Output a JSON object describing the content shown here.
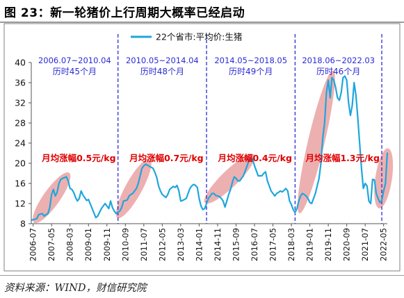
{
  "figure": {
    "title": "图 23：新一轮猪价上行周期大概率已经启动",
    "source": "资料来源：WIND，财信研究院"
  },
  "chart_data": {
    "type": "line",
    "series": [
      {
        "name": "22个省市:平均价:生猪",
        "color": "#1ea6de",
        "points": [
          [
            "2006-06",
            8.7
          ],
          [
            "2006-09",
            9.0
          ],
          [
            "2006-10",
            9.8
          ],
          [
            "2006-12",
            10.0
          ],
          [
            "2007-01",
            9.5
          ],
          [
            "2007-02",
            9.8
          ],
          [
            "2007-03",
            10.0
          ],
          [
            "2007-04",
            11.2
          ],
          [
            "2007-05",
            13.8
          ],
          [
            "2007-06",
            14.8
          ],
          [
            "2007-07",
            13.5
          ],
          [
            "2007-08",
            14.2
          ],
          [
            "2007-09",
            16.0
          ],
          [
            "2007-10",
            16.8
          ],
          [
            "2007-11",
            17.0
          ],
          [
            "2008-01",
            17.3
          ],
          [
            "2008-02",
            16.5
          ],
          [
            "2008-03",
            15.0
          ],
          [
            "2008-04",
            14.8
          ],
          [
            "2008-05",
            14.2
          ],
          [
            "2008-06",
            13.2
          ],
          [
            "2008-07",
            12.5
          ],
          [
            "2008-08",
            13.0
          ],
          [
            "2008-09",
            14.5
          ],
          [
            "2008-10",
            13.7
          ],
          [
            "2008-12",
            12.6
          ],
          [
            "2009-01",
            12.8
          ],
          [
            "2009-03",
            11.0
          ],
          [
            "2009-05",
            9.2
          ],
          [
            "2009-06",
            9.5
          ],
          [
            "2009-08",
            11.0
          ],
          [
            "2009-09",
            11.5
          ],
          [
            "2009-10",
            12.0
          ],
          [
            "2009-12",
            11.0
          ],
          [
            "2010-01",
            12.5
          ],
          [
            "2010-02",
            11.2
          ],
          [
            "2010-03",
            10.5
          ],
          [
            "2010-04",
            10.0
          ],
          [
            "2010-05",
            10.3
          ],
          [
            "2010-06",
            10.5
          ],
          [
            "2010-07",
            11.2
          ],
          [
            "2010-08",
            12.5
          ],
          [
            "2010-09",
            12.6
          ],
          [
            "2010-10",
            12.7
          ],
          [
            "2010-11",
            13.5
          ],
          [
            "2010-12",
            13.8
          ],
          [
            "2011-01",
            14.0
          ],
          [
            "2011-02",
            14.5
          ],
          [
            "2011-03",
            15.0
          ],
          [
            "2011-04",
            16.0
          ],
          [
            "2011-05",
            17.5
          ],
          [
            "2011-06",
            19.0
          ],
          [
            "2011-07",
            19.5
          ],
          [
            "2011-08",
            19.8
          ],
          [
            "2011-09",
            19.6
          ],
          [
            "2011-10",
            19.4
          ],
          [
            "2011-11",
            19.2
          ],
          [
            "2011-12",
            19.0
          ],
          [
            "2012-01",
            18.2
          ],
          [
            "2012-02",
            17.2
          ],
          [
            "2012-03",
            15.5
          ],
          [
            "2012-04",
            14.5
          ],
          [
            "2012-05",
            13.8
          ],
          [
            "2012-06",
            13.5
          ],
          [
            "2012-07",
            13.2
          ],
          [
            "2012-08",
            13.8
          ],
          [
            "2012-09",
            14.8
          ],
          [
            "2012-10",
            15.1
          ],
          [
            "2012-11",
            15.4
          ],
          [
            "2012-12",
            15.2
          ],
          [
            "2013-01",
            15.6
          ],
          [
            "2013-02",
            14.5
          ],
          [
            "2013-03",
            12.5
          ],
          [
            "2013-04",
            12.6
          ],
          [
            "2013-05",
            12.8
          ],
          [
            "2013-06",
            13.0
          ],
          [
            "2013-07",
            14.0
          ],
          [
            "2013-08",
            15.0
          ],
          [
            "2013-09",
            15.5
          ],
          [
            "2013-10",
            15.8
          ],
          [
            "2013-11",
            15.6
          ],
          [
            "2013-12",
            15.2
          ],
          [
            "2014-01",
            13.0
          ],
          [
            "2014-02",
            11.5
          ],
          [
            "2014-03",
            10.8
          ],
          [
            "2014-04",
            11.0
          ],
          [
            "2014-05",
            12.0
          ],
          [
            "2014-06",
            13.0
          ],
          [
            "2014-07",
            13.5
          ],
          [
            "2014-08",
            14.0
          ],
          [
            "2014-09",
            14.0
          ],
          [
            "2014-10",
            13.6
          ],
          [
            "2014-11",
            13.5
          ],
          [
            "2014-12",
            13.4
          ],
          [
            "2015-01",
            13.0
          ],
          [
            "2015-02",
            12.5
          ],
          [
            "2015-03",
            11.3
          ],
          [
            "2015-04",
            12.5
          ],
          [
            "2015-05",
            13.8
          ],
          [
            "2015-06",
            14.8
          ],
          [
            "2015-07",
            16.2
          ],
          [
            "2015-08",
            17.3
          ],
          [
            "2015-09",
            17.0
          ],
          [
            "2015-10",
            16.5
          ],
          [
            "2015-11",
            16.5
          ],
          [
            "2015-12",
            17.0
          ],
          [
            "2016-01",
            17.5
          ],
          [
            "2016-02",
            18.5
          ],
          [
            "2016-03",
            19.5
          ],
          [
            "2016-04",
            20.5
          ],
          [
            "2016-05",
            21.0
          ],
          [
            "2016-06",
            20.8
          ],
          [
            "2016-07",
            19.5
          ],
          [
            "2016-08",
            18.5
          ],
          [
            "2016-09",
            17.5
          ],
          [
            "2016-10",
            17.5
          ],
          [
            "2016-11",
            17.5
          ],
          [
            "2016-12",
            18.0
          ],
          [
            "2017-01",
            18.3
          ],
          [
            "2017-02",
            16.5
          ],
          [
            "2017-03",
            15.5
          ],
          [
            "2017-04",
            14.5
          ],
          [
            "2017-05",
            14.0
          ],
          [
            "2017-06",
            13.5
          ],
          [
            "2017-07",
            14.0
          ],
          [
            "2017-08",
            14.2
          ],
          [
            "2017-09",
            14.5
          ],
          [
            "2017-10",
            14.3
          ],
          [
            "2017-11",
            14.6
          ],
          [
            "2017-12",
            15.0
          ],
          [
            "2018-01",
            14.5
          ],
          [
            "2018-02",
            12.5
          ],
          [
            "2018-03",
            11.8
          ],
          [
            "2018-04",
            10.8
          ],
          [
            "2018-05",
            10.2
          ],
          [
            "2018-06",
            11.0
          ],
          [
            "2018-07",
            12.5
          ],
          [
            "2018-08",
            13.5
          ],
          [
            "2018-09",
            14.0
          ],
          [
            "2018-10",
            13.8
          ],
          [
            "2018-11",
            13.5
          ],
          [
            "2018-12",
            13.0
          ],
          [
            "2019-01",
            12.2
          ],
          [
            "2019-02",
            12.0
          ],
          [
            "2019-03",
            13.0
          ],
          [
            "2019-04",
            14.0
          ],
          [
            "2019-05",
            15.5
          ],
          [
            "2019-06",
            17.0
          ],
          [
            "2019-07",
            20.0
          ],
          [
            "2019-08",
            25.0
          ],
          [
            "2019-09",
            28.0
          ],
          [
            "2019-10",
            34.0
          ],
          [
            "2019-11",
            36.5
          ],
          [
            "2019-12",
            33.0
          ],
          [
            "2020-01",
            37.0
          ],
          [
            "2020-02",
            36.5
          ],
          [
            "2020-03",
            35.0
          ],
          [
            "2020-04",
            33.0
          ],
          [
            "2020-05",
            32.5
          ],
          [
            "2020-06",
            34.0
          ],
          [
            "2020-07",
            37.0
          ],
          [
            "2020-08",
            37.3
          ],
          [
            "2020-09",
            36.5
          ],
          [
            "2020-10",
            32.0
          ],
          [
            "2020-11",
            29.5
          ],
          [
            "2020-12",
            31.5
          ],
          [
            "2021-01",
            36.0
          ],
          [
            "2021-02",
            33.5
          ],
          [
            "2021-03",
            29.0
          ],
          [
            "2021-04",
            24.0
          ],
          [
            "2021-05",
            19.0
          ],
          [
            "2021-06",
            15.0
          ],
          [
            "2021-07",
            16.0
          ],
          [
            "2021-08",
            15.5
          ],
          [
            "2021-09",
            12.5
          ],
          [
            "2021-10",
            12.0
          ],
          [
            "2021-11",
            16.8
          ],
          [
            "2021-12",
            16.7
          ],
          [
            "2022-01",
            14.0
          ],
          [
            "2022-02",
            13.0
          ],
          [
            "2022-03",
            12.2
          ],
          [
            "2022-04",
            12.6
          ],
          [
            "2022-05",
            14.5
          ],
          [
            "2022-06",
            16.0
          ],
          [
            "2022-07",
            22.0
          ]
        ]
      }
    ],
    "xlim": [
      "2006-06",
      "2022-07"
    ],
    "xticks": [
      "2006-07",
      "2007-05",
      "2008-03",
      "2009-01",
      "2009-11",
      "2010-09",
      "2011-07",
      "2012-05",
      "2013-03",
      "2014-01",
      "2014-11",
      "2015-09",
      "2016-07",
      "2017-05",
      "2018-03",
      "2019-01",
      "2019-11",
      "2020-09",
      "2021-07",
      "2022-05"
    ],
    "ylim": [
      8,
      40
    ],
    "yticks": [
      8,
      12,
      16,
      20,
      24,
      28,
      32,
      36,
      40
    ],
    "grid": false,
    "legend_position": "top-center",
    "cycle_dividers": [
      "2010-05",
      "2014-05",
      "2018-05",
      "2022-04"
    ],
    "cycle_labels": [
      {
        "period": "2006.07~2010.04",
        "duration": "历时45个月",
        "rise": "月均涨幅0.5元/kg",
        "rise_y": 21
      },
      {
        "period": "2010.05~2014.04",
        "duration": "历时48个月",
        "rise": "月均涨幅0.7元/kg",
        "rise_y": 21
      },
      {
        "period": "2014.05~2018.05",
        "duration": "历时49个月",
        "rise": "月均涨幅0.4元/kg",
        "rise_y": 21
      },
      {
        "period": "2018.06~2022.03",
        "duration": "历时46个月",
        "rise": "月均涨幅1.3元/kg",
        "rise_y": 21
      }
    ],
    "highlight_color": "#e58f8f",
    "highlights": [
      {
        "from": [
          "2006-09",
          9.0
        ],
        "to": [
          "2008-01",
          17.3
        ]
      },
      {
        "from": [
          "2010-06",
          10.0
        ],
        "to": [
          "2011-09",
          20.0
        ]
      },
      {
        "from": [
          "2014-06",
          12.8
        ],
        "to": [
          "2016-05",
          21.0
        ]
      },
      {
        "from": [
          "2018-08",
          11.0
        ],
        "to": [
          "2020-01",
          37.5
        ]
      },
      {
        "from": [
          "2022-03",
          12.0
        ],
        "to": [
          "2022-07",
          22.0
        ]
      }
    ]
  }
}
